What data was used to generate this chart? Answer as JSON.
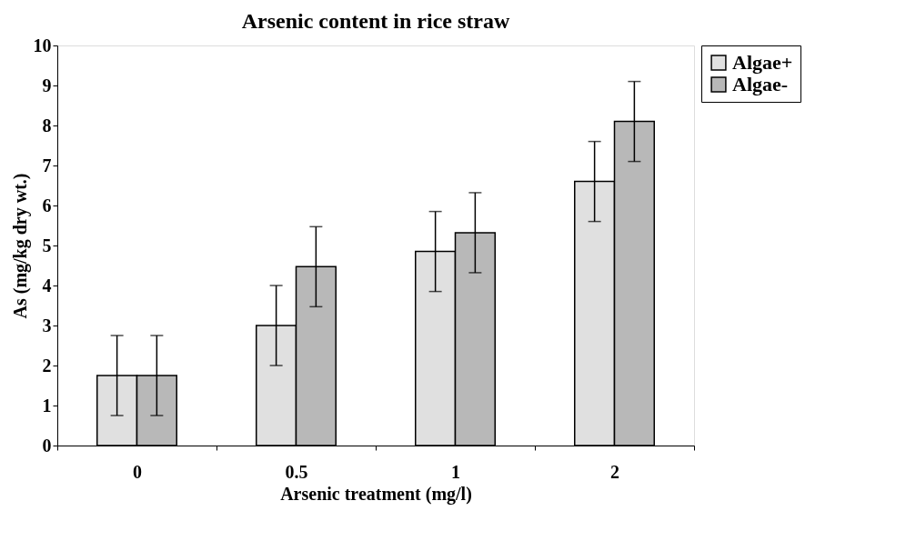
{
  "chart_data": {
    "type": "bar",
    "title": "Arsenic content in rice straw",
    "xlabel": "Arsenic treatment (mg/l)",
    "ylabel": "As (mg/kg dry wt.)",
    "categories": [
      "0",
      "0.5",
      "1",
      "2"
    ],
    "series": [
      {
        "name": "Algae+",
        "color": "#e0e0e0",
        "values": [
          1.75,
          3.0,
          4.85,
          6.6
        ],
        "errors": [
          1,
          1,
          1,
          1
        ]
      },
      {
        "name": "Algae-",
        "color": "#b8b8b8",
        "values": [
          1.75,
          4.47,
          5.32,
          8.1
        ],
        "errors": [
          1,
          1,
          1,
          1
        ]
      }
    ],
    "ylim": [
      0,
      10
    ],
    "yticks": [
      0,
      1,
      2,
      3,
      4,
      5,
      6,
      7,
      8,
      9,
      10
    ],
    "grid": false,
    "legend": "top right"
  }
}
